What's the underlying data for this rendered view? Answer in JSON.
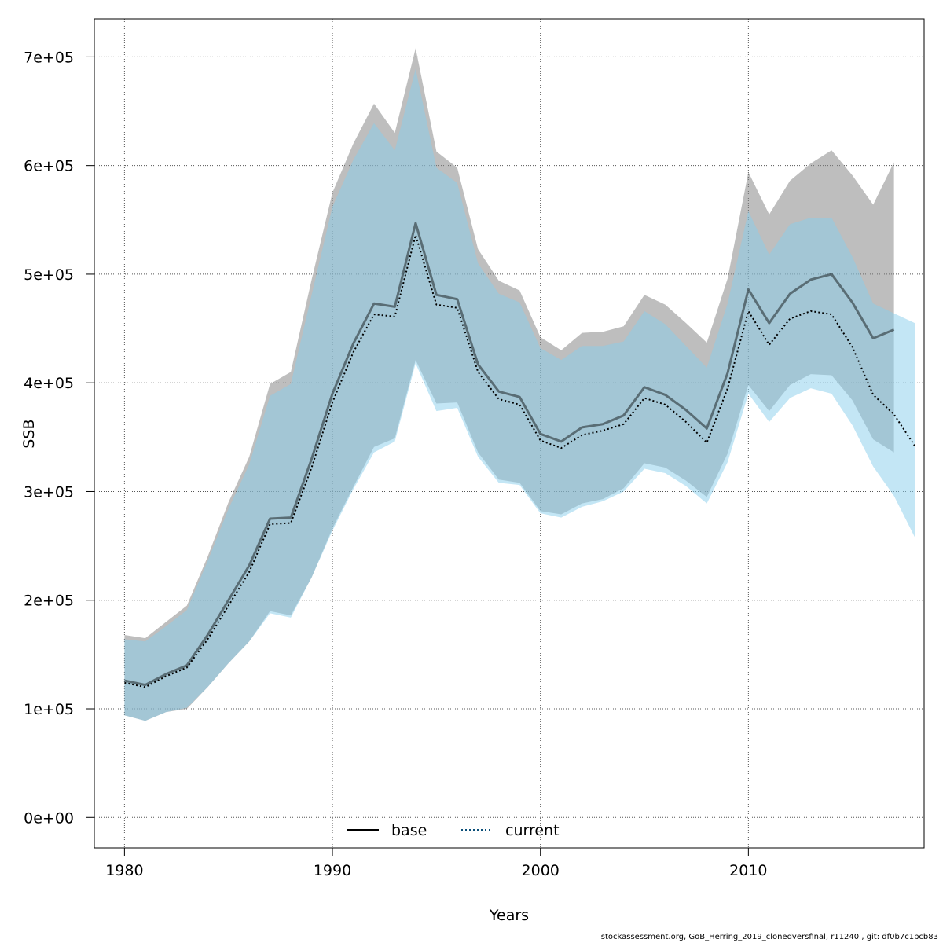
{
  "chart_data": {
    "type": "area",
    "xlabel": "Years",
    "ylabel": "SSB",
    "xlim": [
      1978.55,
      2018.45
    ],
    "ylim": [
      -28000,
      735000
    ],
    "xticks": [
      1980,
      1990,
      2000,
      2010
    ],
    "xtick_labels": [
      "1980",
      "1990",
      "2000",
      "2010"
    ],
    "yticks": [
      0,
      100000,
      200000,
      300000,
      400000,
      500000,
      600000,
      700000
    ],
    "ytick_labels": [
      "0e+00",
      "1e+05",
      "2e+05",
      "3e+05",
      "4e+05",
      "5e+05",
      "6e+05",
      "7e+05"
    ],
    "grid": true,
    "legend": {
      "position": "bottom-center",
      "items": [
        {
          "label": "base",
          "style": "solid",
          "color": "#000000"
        },
        {
          "label": "current",
          "style": "dotted",
          "color": "#0b4f79"
        }
      ]
    },
    "series": [
      {
        "name": "base",
        "line_color": "#000000",
        "band_color": "rgba(125,125,125,0.5)",
        "x": [
          1980,
          1981,
          1982,
          1983,
          1984,
          1985,
          1986,
          1987,
          1988,
          1989,
          1990,
          1991,
          1992,
          1993,
          1994,
          1995,
          1996,
          1997,
          1998,
          1999,
          2000,
          2001,
          2002,
          2003,
          2004,
          2005,
          2006,
          2007,
          2008,
          2009,
          2010,
          2011,
          2012,
          2013,
          2014,
          2015,
          2016,
          2017
        ],
        "values": [
          126000,
          122000,
          132000,
          140000,
          168000,
          200000,
          232000,
          275000,
          276000,
          330000,
          390000,
          436000,
          473000,
          470000,
          547000,
          481000,
          477000,
          417000,
          392000,
          387000,
          353000,
          346000,
          359000,
          362000,
          370000,
          396000,
          389000,
          375000,
          358000,
          409000,
          486000,
          455000,
          482000,
          495000,
          500000,
          474000,
          441000,
          449000
        ],
        "upper": [
          168000,
          165000,
          180000,
          195000,
          240000,
          290000,
          332000,
          399000,
          410000,
          495000,
          575000,
          620000,
          657000,
          630000,
          708000,
          613000,
          598000,
          523000,
          494000,
          485000,
          442000,
          430000,
          446000,
          447000,
          452000,
          481000,
          472000,
          455000,
          437000,
          496000,
          594000,
          555000,
          586000,
          602000,
          614000,
          591000,
          564000,
          603000
        ],
        "lower": [
          94000,
          89000,
          97000,
          100000,
          120000,
          142000,
          162000,
          190000,
          186000,
          221000,
          266000,
          304000,
          341000,
          349000,
          421000,
          381000,
          382000,
          336000,
          311000,
          308000,
          282000,
          279000,
          289000,
          293000,
          303000,
          326000,
          322000,
          310000,
          295000,
          335000,
          398000,
          374000,
          398000,
          408000,
          407000,
          384000,
          348000,
          336000
        ]
      },
      {
        "name": "current",
        "line_color": "#0b4f79",
        "band_color": "rgba(135,206,235,0.5)",
        "x": [
          1980,
          1981,
          1982,
          1983,
          1984,
          1985,
          1986,
          1987,
          1988,
          1989,
          1990,
          1991,
          1992,
          1993,
          1994,
          1995,
          1996,
          1997,
          1998,
          1999,
          2000,
          2001,
          2002,
          2003,
          2004,
          2005,
          2006,
          2007,
          2008,
          2009,
          2010,
          2011,
          2012,
          2013,
          2014,
          2015,
          2016,
          2017,
          2018
        ],
        "values": [
          124000,
          120000,
          130000,
          138000,
          164000,
          195000,
          226000,
          270000,
          271000,
          322000,
          382000,
          428000,
          463000,
          461000,
          536000,
          472000,
          469000,
          410000,
          385000,
          380000,
          347000,
          340000,
          352000,
          356000,
          362000,
          386000,
          380000,
          364000,
          345000,
          395000,
          466000,
          435000,
          459000,
          466000,
          463000,
          433000,
          389000,
          371000,
          342000
        ],
        "upper": [
          164000,
          162000,
          176000,
          191000,
          236000,
          284000,
          325000,
          388000,
          399000,
          481000,
          562000,
          605000,
          639000,
          614000,
          689000,
          598000,
          584000,
          510000,
          482000,
          474000,
          432000,
          421000,
          434000,
          434000,
          438000,
          466000,
          454000,
          434000,
          414000,
          473000,
          558000,
          518000,
          546000,
          552000,
          552000,
          516000,
          473000,
          464000,
          455000
        ],
        "lower": [
          94000,
          89000,
          97000,
          101000,
          120000,
          142000,
          162000,
          188000,
          184000,
          221000,
          264000,
          302000,
          336000,
          346000,
          418000,
          374000,
          377000,
          332000,
          308000,
          306000,
          280000,
          276000,
          286000,
          291000,
          300000,
          321000,
          317000,
          305000,
          289000,
          327000,
          390000,
          364000,
          386000,
          395000,
          390000,
          361000,
          323000,
          296000,
          258000
        ]
      }
    ],
    "footnote": "stockassessment.org, GoB_Herring_2019_clonedversfinal, r11240 , git: df0b7c1bcb83"
  }
}
